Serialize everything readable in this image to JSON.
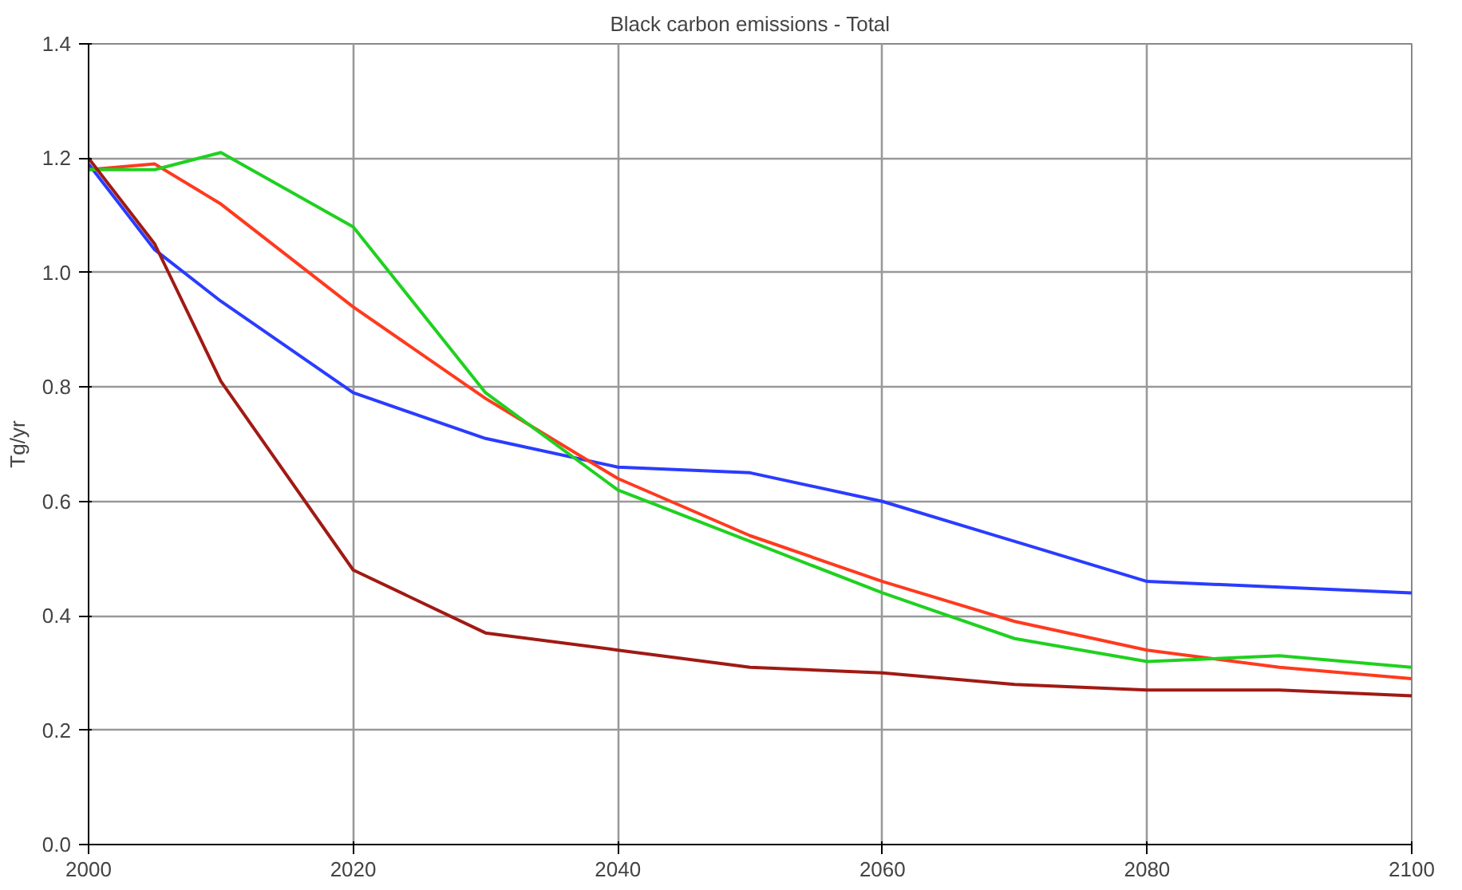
{
  "chart_data": {
    "type": "line",
    "title": "Black carbon emissions - Total",
    "ylabel": "Tg/yr",
    "x": [
      2000,
      2005,
      2010,
      2020,
      2030,
      2040,
      2050,
      2060,
      2070,
      2080,
      2090,
      2100
    ],
    "series": [
      {
        "color": "#2a3cff",
        "values": [
          1.19,
          1.04,
          0.95,
          0.79,
          0.71,
          0.66,
          0.65,
          0.6,
          0.53,
          0.46,
          0.45,
          0.44
        ]
      },
      {
        "color": "#ff3a1e",
        "values": [
          1.18,
          1.19,
          1.12,
          0.94,
          0.78,
          0.64,
          0.54,
          0.46,
          0.39,
          0.34,
          0.31,
          0.29
        ]
      },
      {
        "color": "#1fd11f",
        "values": [
          1.18,
          1.18,
          1.21,
          1.08,
          0.79,
          0.62,
          0.53,
          0.44,
          0.36,
          0.32,
          0.33,
          0.31
        ]
      },
      {
        "color": "#a01a14",
        "values": [
          1.2,
          1.05,
          0.81,
          0.48,
          0.37,
          0.34,
          0.31,
          0.3,
          0.28,
          0.27,
          0.27,
          0.26
        ]
      }
    ],
    "xlim": [
      2000,
      2100
    ],
    "xticks": [
      2000,
      2020,
      2040,
      2060,
      2080,
      2100
    ],
    "ylim": [
      0,
      1.4
    ],
    "yticks": [
      {
        "value": 0,
        "label": "0.0"
      },
      {
        "value": 0.2,
        "label": "0.2"
      },
      {
        "value": 0.4,
        "label": "0.4"
      },
      {
        "value": 0.6,
        "label": "0.6"
      },
      {
        "value": 0.8,
        "label": "0.8"
      },
      {
        "value": 1,
        "label": "1.0"
      },
      {
        "value": 1.2,
        "label": "1.2"
      },
      {
        "value": 1.4,
        "label": "1.4"
      }
    ],
    "grid": true,
    "marker": "none",
    "line_style": "solid"
  }
}
